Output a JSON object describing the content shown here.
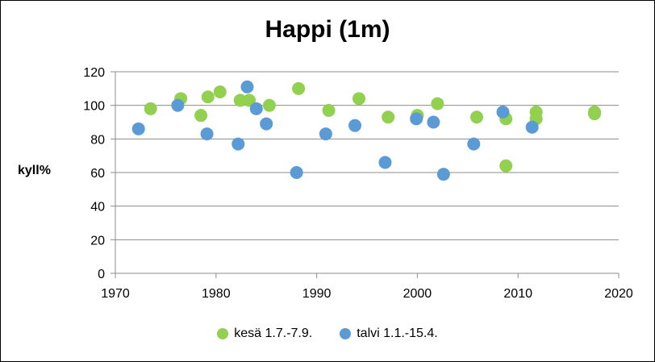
{
  "chart_data": {
    "type": "scatter",
    "title": "Happi (1m)",
    "ylabel": "kyll%",
    "xlabel": "",
    "xlim": [
      1970,
      2020
    ],
    "ylim": [
      0,
      120
    ],
    "xticks": [
      "1970",
      "1980",
      "1990",
      "2000",
      "2010",
      "2020"
    ],
    "yticks": [
      "0",
      "20",
      "40",
      "60",
      "80",
      "100",
      "120"
    ],
    "grid": "horizontal",
    "legend_position": "bottom",
    "series": [
      {
        "name": "kesä 1.7.-7.9.",
        "color": "#92d050",
        "points": [
          {
            "x": 1973.5,
            "y": 98
          },
          {
            "x": 1976.5,
            "y": 104
          },
          {
            "x": 1978.5,
            "y": 94
          },
          {
            "x": 1979.2,
            "y": 105
          },
          {
            "x": 1980.4,
            "y": 108
          },
          {
            "x": 1982.4,
            "y": 103
          },
          {
            "x": 1983.3,
            "y": 103
          },
          {
            "x": 1985.3,
            "y": 100
          },
          {
            "x": 1988.2,
            "y": 110
          },
          {
            "x": 1991.2,
            "y": 97
          },
          {
            "x": 1994.2,
            "y": 104
          },
          {
            "x": 1997.1,
            "y": 93
          },
          {
            "x": 2000.0,
            "y": 94
          },
          {
            "x": 2002.0,
            "y": 101
          },
          {
            "x": 2005.9,
            "y": 93
          },
          {
            "x": 2008.8,
            "y": 92
          },
          {
            "x": 2008.8,
            "y": 64
          },
          {
            "x": 2011.8,
            "y": 96
          },
          {
            "x": 2011.8,
            "y": 92
          },
          {
            "x": 2017.6,
            "y": 96
          },
          {
            "x": 2017.6,
            "y": 95
          }
        ]
      },
      {
        "name": "talvi 1.1.-15.4.",
        "color": "#5b9bd5",
        "points": [
          {
            "x": 1972.3,
            "y": 86
          },
          {
            "x": 1976.2,
            "y": 100
          },
          {
            "x": 1979.1,
            "y": 83
          },
          {
            "x": 1982.2,
            "y": 77
          },
          {
            "x": 1983.1,
            "y": 111
          },
          {
            "x": 1984.0,
            "y": 98
          },
          {
            "x": 1985.0,
            "y": 89
          },
          {
            "x": 1988.0,
            "y": 60
          },
          {
            "x": 1990.9,
            "y": 83
          },
          {
            "x": 1993.8,
            "y": 88
          },
          {
            "x": 1996.8,
            "y": 66
          },
          {
            "x": 1999.9,
            "y": 92
          },
          {
            "x": 2001.6,
            "y": 90
          },
          {
            "x": 2002.6,
            "y": 59
          },
          {
            "x": 2005.6,
            "y": 77
          },
          {
            "x": 2008.5,
            "y": 96
          },
          {
            "x": 2011.4,
            "y": 87
          }
        ]
      }
    ]
  }
}
